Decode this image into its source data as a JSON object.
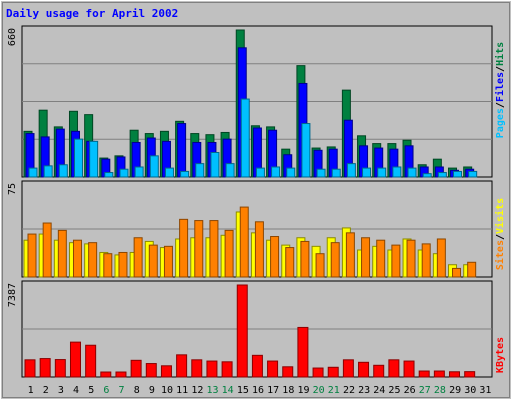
{
  "title": "Daily usage for April 2002",
  "colors": {
    "background": "#c0c0c0",
    "hits": "#008040",
    "files": "#0000ff",
    "pages": "#00c0ff",
    "visits": "#ffff00",
    "sites": "#ff8000",
    "kbytes": "#ff0000",
    "weekday_label": "#000000",
    "weekend_label": "#008040"
  },
  "chart_data": [
    {
      "type": "bar",
      "panel": "hits-files-pages",
      "ymax_label": "660",
      "ylim": [
        0,
        660
      ],
      "categories": [
        "1",
        "2",
        "3",
        "4",
        "5",
        "6",
        "7",
        "8",
        "9",
        "10",
        "11",
        "12",
        "13",
        "14",
        "15",
        "16",
        "17",
        "18",
        "19",
        "20",
        "21",
        "22",
        "23",
        "24",
        "25",
        "26",
        "27",
        "28",
        "29",
        "30",
        "31"
      ],
      "weekend_days": [
        "6",
        "7",
        "13",
        "14",
        "20",
        "21",
        "27",
        "28"
      ],
      "series": [
        {
          "name": "Hits",
          "values": [
            205,
            300,
            225,
            295,
            280,
            85,
            95,
            210,
            195,
            205,
            250,
            195,
            190,
            200,
            660,
            230,
            225,
            125,
            500,
            130,
            135,
            390,
            185,
            150,
            150,
            165,
            55,
            80,
            40,
            45,
            0
          ]
        },
        {
          "name": "Files",
          "values": [
            195,
            180,
            215,
            205,
            160,
            80,
            90,
            155,
            175,
            160,
            240,
            155,
            155,
            170,
            580,
            220,
            210,
            100,
            420,
            120,
            125,
            255,
            140,
            130,
            125,
            140,
            45,
            45,
            30,
            35,
            0
          ]
        },
        {
          "name": "Pages",
          "values": [
            40,
            50,
            55,
            170,
            160,
            20,
            35,
            45,
            95,
            40,
            25,
            60,
            110,
            60,
            350,
            40,
            45,
            40,
            240,
            35,
            35,
            60,
            40,
            40,
            45,
            40,
            15,
            20,
            25,
            25,
            0
          ]
        }
      ],
      "legend": [
        "Pages",
        "Files",
        "Hits"
      ]
    },
    {
      "type": "bar",
      "panel": "visits-sites",
      "ymax_label": "75",
      "ylim": [
        0,
        75
      ],
      "categories": [
        "1",
        "2",
        "3",
        "4",
        "5",
        "6",
        "7",
        "8",
        "9",
        "10",
        "11",
        "12",
        "13",
        "14",
        "15",
        "16",
        "17",
        "18",
        "19",
        "20",
        "21",
        "22",
        "23",
        "24",
        "25",
        "26",
        "27",
        "28",
        "29",
        "30",
        "31"
      ],
      "series": [
        {
          "name": "Visits",
          "values": [
            30,
            35,
            30,
            28,
            27,
            20,
            18,
            20,
            29,
            24,
            31,
            32,
            32,
            34,
            53,
            36,
            30,
            26,
            32,
            25,
            32,
            40,
            22,
            25,
            22,
            31,
            22,
            19,
            10,
            10,
            0
          ]
        },
        {
          "name": "Sites",
          "values": [
            35,
            44,
            38,
            30,
            28,
            19,
            20,
            32,
            26,
            25,
            47,
            46,
            46,
            38,
            57,
            45,
            33,
            24,
            29,
            19,
            28,
            36,
            32,
            30,
            26,
            30,
            27,
            31,
            7,
            12,
            0
          ]
        }
      ],
      "legend": [
        "Sites",
        "Visits"
      ]
    },
    {
      "type": "bar",
      "panel": "kbytes",
      "ymax_label": "7387",
      "ylim": [
        0,
        7387
      ],
      "categories": [
        "1",
        "2",
        "3",
        "4",
        "5",
        "6",
        "7",
        "8",
        "9",
        "10",
        "11",
        "12",
        "13",
        "14",
        "15",
        "16",
        "17",
        "18",
        "19",
        "20",
        "21",
        "22",
        "23",
        "24",
        "25",
        "26",
        "27",
        "28",
        "29",
        "30",
        "31"
      ],
      "series": [
        {
          "name": "KBytes",
          "values": [
            1380,
            1480,
            1400,
            2800,
            2550,
            400,
            400,
            1340,
            1080,
            900,
            1780,
            1380,
            1280,
            1220,
            7387,
            1740,
            1280,
            820,
            3980,
            720,
            780,
            1380,
            1180,
            940,
            1380,
            1280,
            480,
            480,
            420,
            430,
            0
          ]
        }
      ],
      "legend": [
        "KBytes"
      ]
    }
  ]
}
